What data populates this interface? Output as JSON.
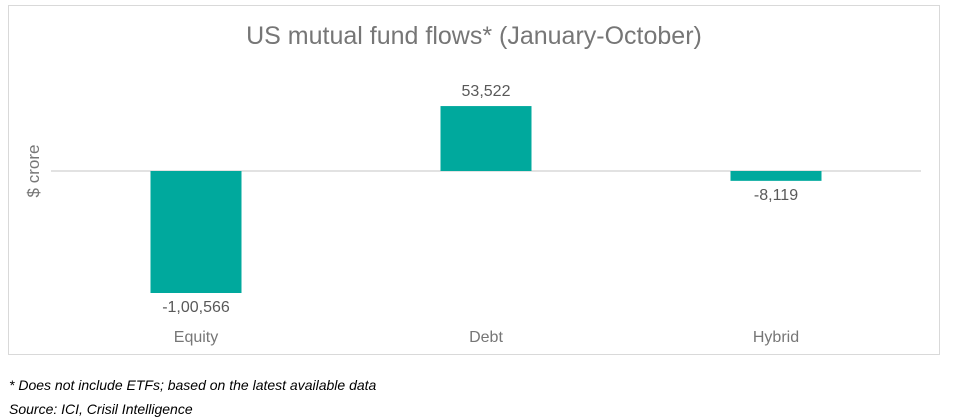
{
  "chart_data": {
    "type": "bar",
    "title": "US mutual fund flows* (January-October)",
    "ylabel": "$ crore",
    "xlabel": "",
    "categories": [
      "Equity",
      "Debt",
      "Hybrid"
    ],
    "values": [
      -100566,
      53522,
      -8119
    ],
    "value_labels": [
      "-1,00,566",
      "53,522",
      "-8,119"
    ],
    "ylim": [
      -125000,
      70000
    ],
    "bar_color": "#00a99d",
    "axis_color": "#d9d9d9",
    "label_color": "#595959",
    "category_label_color": "#767676",
    "grid": false,
    "legend": "none"
  },
  "footnotes": {
    "note": "* Does not include ETFs; based on the latest available data",
    "source": "Source: ICI, Crisil Intelligence"
  }
}
